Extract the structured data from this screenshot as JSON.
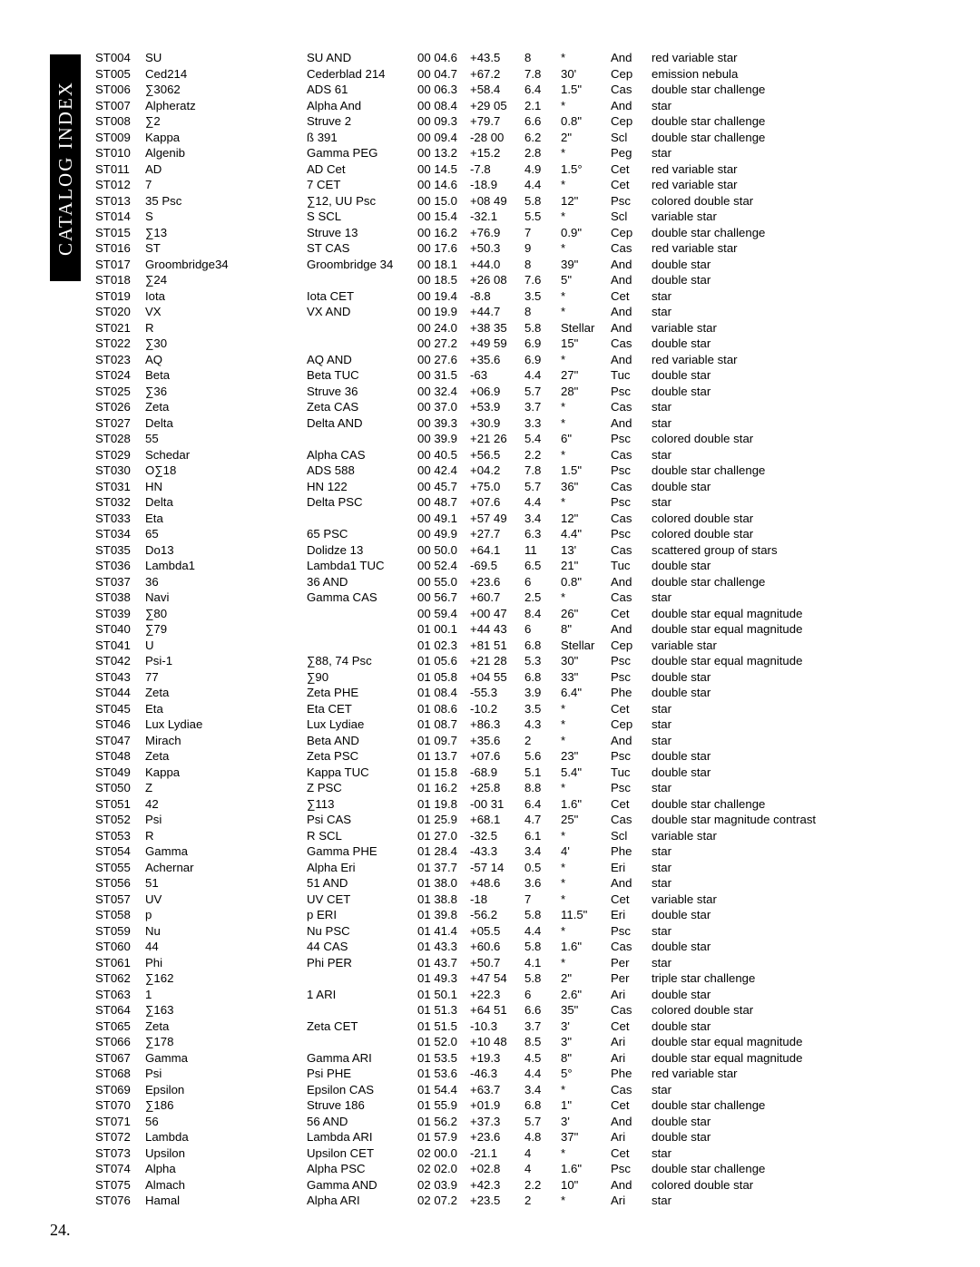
{
  "sideLabel": "CATALOG INDEX",
  "pageNumber": "24.",
  "rows": [
    {
      "id": "ST004",
      "name": "SU",
      "star": "SU AND",
      "ra": "00 04.6",
      "dec": "+43.5",
      "mag": "8",
      "sep": "*",
      "con": "And",
      "desc": "red variable star"
    },
    {
      "id": "ST005",
      "name": "Ced214",
      "star": "Cederblad 214",
      "ra": "00 04.7",
      "dec": "+67.2",
      "mag": "7.8",
      "sep": "30'",
      "con": "Cep",
      "desc": "emission nebula"
    },
    {
      "id": "ST006",
      "name": "∑3062",
      "star": "ADS 61",
      "ra": "00 06.3",
      "dec": "+58.4",
      "mag": "6.4",
      "sep": "1.5\"",
      "con": "Cas",
      "desc": "double star challenge"
    },
    {
      "id": "ST007",
      "name": "Alpheratz",
      "star": "Alpha And",
      "ra": "00 08.4",
      "dec": "+29 05",
      "mag": "2.1",
      "sep": "*",
      "con": "And",
      "desc": "star"
    },
    {
      "id": "ST008",
      "name": "∑2",
      "star": "Struve 2",
      "ra": "00 09.3",
      "dec": "+79.7",
      "mag": "6.6",
      "sep": "0.8\"",
      "con": "Cep",
      "desc": "double star challenge"
    },
    {
      "id": "ST009",
      "name": "Kappa",
      "star": "ß 391",
      "ra": "00 09.4",
      "dec": "-28 00",
      "mag": "6.2",
      "sep": "2\"",
      "con": "Scl",
      "desc": "double star challenge"
    },
    {
      "id": "ST010",
      "name": "Algenib",
      "star": "Gamma PEG",
      "ra": "00 13.2",
      "dec": "+15.2",
      "mag": "2.8",
      "sep": "*",
      "con": "Peg",
      "desc": "star"
    },
    {
      "id": "ST011",
      "name": "AD",
      "star": "AD Cet",
      "ra": "00 14.5",
      "dec": "-7.8",
      "mag": "4.9",
      "sep": "1.5°",
      "con": "Cet",
      "desc": "red variable star"
    },
    {
      "id": "ST012",
      "name": "7",
      "star": "7 CET",
      "ra": "00 14.6",
      "dec": "-18.9",
      "mag": "4.4",
      "sep": "*",
      "con": "Cet",
      "desc": "red variable star"
    },
    {
      "id": "ST013",
      "name": "35 Psc",
      "star": "∑12, UU Psc",
      "ra": "00 15.0",
      "dec": "+08 49",
      "mag": "5.8",
      "sep": "12\"",
      "con": "Psc",
      "desc": "colored double star"
    },
    {
      "id": "ST014",
      "name": "S",
      "star": "S SCL",
      "ra": "00 15.4",
      "dec": "-32.1",
      "mag": "5.5",
      "sep": "*",
      "con": "Scl",
      "desc": "variable star"
    },
    {
      "id": "ST015",
      "name": "∑13",
      "star": "Struve 13",
      "ra": "00 16.2",
      "dec": "+76.9",
      "mag": "7",
      "sep": "0.9\"",
      "con": "Cep",
      "desc": "double star challenge"
    },
    {
      "id": "ST016",
      "name": "ST",
      "star": "ST CAS",
      "ra": "00 17.6",
      "dec": "+50.3",
      "mag": "9",
      "sep": "*",
      "con": "Cas",
      "desc": "red variable star"
    },
    {
      "id": "ST017",
      "name": "Groombridge34",
      "star": "Groombridge 34",
      "ra": "00 18.1",
      "dec": "+44.0",
      "mag": "8",
      "sep": "39\"",
      "con": "And",
      "desc": "double star"
    },
    {
      "id": "ST018",
      "name": "∑24",
      "star": "",
      "ra": "00 18.5",
      "dec": "+26 08",
      "mag": "7.6",
      "sep": "5\"",
      "con": "And",
      "desc": "double star"
    },
    {
      "id": "ST019",
      "name": "Iota",
      "star": "Iota CET",
      "ra": "00 19.4",
      "dec": "-8.8",
      "mag": "3.5",
      "sep": "*",
      "con": "Cet",
      "desc": "star"
    },
    {
      "id": "ST020",
      "name": "VX",
      "star": "VX AND",
      "ra": "00 19.9",
      "dec": "+44.7",
      "mag": "8",
      "sep": "*",
      "con": "And",
      "desc": "star"
    },
    {
      "id": "ST021",
      "name": "R",
      "star": "",
      "ra": "00 24.0",
      "dec": "+38 35",
      "mag": "5.8",
      "sep": "Stellar",
      "con": "And",
      "desc": "variable star"
    },
    {
      "id": "ST022",
      "name": "∑30",
      "star": "",
      "ra": "00 27.2",
      "dec": "+49 59",
      "mag": "6.9",
      "sep": "15\"",
      "con": "Cas",
      "desc": "double star"
    },
    {
      "id": "ST023",
      "name": "AQ",
      "star": "AQ AND",
      "ra": "00 27.6",
      "dec": "+35.6",
      "mag": "6.9",
      "sep": "*",
      "con": "And",
      "desc": "red variable star"
    },
    {
      "id": "ST024",
      "name": "Beta",
      "star": "Beta TUC",
      "ra": "00 31.5",
      "dec": "-63",
      "mag": "4.4",
      "sep": "27\"",
      "con": "Tuc",
      "desc": "double star"
    },
    {
      "id": "ST025",
      "name": "∑36",
      "star": "Struve 36",
      "ra": "00 32.4",
      "dec": "+06.9",
      "mag": "5.7",
      "sep": "28\"",
      "con": "Psc",
      "desc": "double star"
    },
    {
      "id": "ST026",
      "name": "Zeta",
      "star": "Zeta CAS",
      "ra": "00 37.0",
      "dec": "+53.9",
      "mag": "3.7",
      "sep": "*",
      "con": "Cas",
      "desc": "star"
    },
    {
      "id": "ST027",
      "name": "Delta",
      "star": "Delta AND",
      "ra": "00 39.3",
      "dec": "+30.9",
      "mag": "3.3",
      "sep": "*",
      "con": "And",
      "desc": "star"
    },
    {
      "id": "ST028",
      "name": "55",
      "star": "",
      "ra": "00 39.9",
      "dec": "+21 26",
      "mag": "5.4",
      "sep": "6\"",
      "con": "Psc",
      "desc": "colored double star"
    },
    {
      "id": "ST029",
      "name": "Schedar",
      "star": "Alpha CAS",
      "ra": "00 40.5",
      "dec": "+56.5",
      "mag": "2.2",
      "sep": "*",
      "con": "Cas",
      "desc": "star"
    },
    {
      "id": "ST030",
      "name": "O∑18",
      "star": "ADS 588",
      "ra": "00 42.4",
      "dec": "+04.2",
      "mag": "7.8",
      "sep": "1.5\"",
      "con": "Psc",
      "desc": "double star challenge"
    },
    {
      "id": "ST031",
      "name": "HN",
      "star": "HN 122",
      "ra": "00 45.7",
      "dec": "+75.0",
      "mag": "5.7",
      "sep": "36\"",
      "con": "Cas",
      "desc": "double star"
    },
    {
      "id": "ST032",
      "name": "Delta",
      "star": "Delta PSC",
      "ra": "00 48.7",
      "dec": "+07.6",
      "mag": "4.4",
      "sep": "*",
      "con": "Psc",
      "desc": "star"
    },
    {
      "id": "ST033",
      "name": "Eta",
      "star": "",
      "ra": "00 49.1",
      "dec": "+57 49",
      "mag": "3.4",
      "sep": "12\"",
      "con": "Cas",
      "desc": "colored double star"
    },
    {
      "id": "ST034",
      "name": "65",
      "star": "65 PSC",
      "ra": "00 49.9",
      "dec": "+27.7",
      "mag": "6.3",
      "sep": "4.4\"",
      "con": "Psc",
      "desc": "colored double star"
    },
    {
      "id": "ST035",
      "name": "Do13",
      "star": "Dolidze 13",
      "ra": "00 50.0",
      "dec": "+64.1",
      "mag": "11",
      "sep": "13'",
      "con": "Cas",
      "desc": "scattered group of stars"
    },
    {
      "id": "ST036",
      "name": "Lambda1",
      "star": "Lambda1 TUC",
      "ra": "00 52.4",
      "dec": "-69.5",
      "mag": "6.5",
      "sep": "21\"",
      "con": "Tuc",
      "desc": "double star"
    },
    {
      "id": "ST037",
      "name": "36",
      "star": "36 AND",
      "ra": "00 55.0",
      "dec": "+23.6",
      "mag": "6",
      "sep": "0.8\"",
      "con": "And",
      "desc": "double star challenge"
    },
    {
      "id": "ST038",
      "name": "Navi",
      "star": "Gamma CAS",
      "ra": "00 56.7",
      "dec": "+60.7",
      "mag": "2.5",
      "sep": "*",
      "con": "Cas",
      "desc": "star"
    },
    {
      "id": "ST039",
      "name": "∑80",
      "star": "",
      "ra": "00 59.4",
      "dec": "+00 47",
      "mag": "8.4",
      "sep": "26\"",
      "con": "Cet",
      "desc": "double star equal magnitude"
    },
    {
      "id": "ST040",
      "name": "∑79",
      "star": "",
      "ra": "01 00.1",
      "dec": "+44 43",
      "mag": "6",
      "sep": "8\"",
      "con": "And",
      "desc": "double star equal magnitude"
    },
    {
      "id": "ST041",
      "name": "U",
      "star": "",
      "ra": "01 02.3",
      "dec": "+81 51",
      "mag": "6.8",
      "sep": "Stellar",
      "con": "Cep",
      "desc": "variable star"
    },
    {
      "id": "ST042",
      "name": "Psi-1",
      "star": "∑88, 74 Psc",
      "ra": "01 05.6",
      "dec": "+21 28",
      "mag": "5.3",
      "sep": "30\"",
      "con": "Psc",
      "desc": "double star equal magnitude"
    },
    {
      "id": "ST043",
      "name": "77",
      "star": "∑90",
      "ra": "01 05.8",
      "dec": "+04 55",
      "mag": "6.8",
      "sep": "33\"",
      "con": "Psc",
      "desc": "double star"
    },
    {
      "id": "ST044",
      "name": "Zeta",
      "star": "Zeta PHE",
      "ra": "01 08.4",
      "dec": "-55.3",
      "mag": "3.9",
      "sep": "6.4\"",
      "con": "Phe",
      "desc": "double star"
    },
    {
      "id": "ST045",
      "name": "Eta",
      "star": "Eta CET",
      "ra": "01 08.6",
      "dec": "-10.2",
      "mag": "3.5",
      "sep": "*",
      "con": "Cet",
      "desc": "star"
    },
    {
      "id": "ST046",
      "name": "Lux Lydiae",
      "star": "Lux Lydiae",
      "ra": "01 08.7",
      "dec": "+86.3",
      "mag": "4.3",
      "sep": "*",
      "con": "Cep",
      "desc": "star"
    },
    {
      "id": "ST047",
      "name": "Mirach",
      "star": "Beta AND",
      "ra": "01 09.7",
      "dec": "+35.6",
      "mag": "2",
      "sep": "*",
      "con": "And",
      "desc": "star"
    },
    {
      "id": "ST048",
      "name": "Zeta",
      "star": "Zeta PSC",
      "ra": "01 13.7",
      "dec": "+07.6",
      "mag": "5.6",
      "sep": "23\"",
      "con": "Psc",
      "desc": "double star"
    },
    {
      "id": "ST049",
      "name": "Kappa",
      "star": "Kappa TUC",
      "ra": "01 15.8",
      "dec": "-68.9",
      "mag": "5.1",
      "sep": "5.4\"",
      "con": "Tuc",
      "desc": "double star"
    },
    {
      "id": "ST050",
      "name": "Z",
      "star": "Z PSC",
      "ra": "01 16.2",
      "dec": "+25.8",
      "mag": "8.8",
      "sep": "*",
      "con": "Psc",
      "desc": "star"
    },
    {
      "id": "ST051",
      "name": "42",
      "star": "∑113",
      "ra": "01 19.8",
      "dec": "-00 31",
      "mag": "6.4",
      "sep": "1.6\"",
      "con": "Cet",
      "desc": "double star challenge"
    },
    {
      "id": "ST052",
      "name": "Psi",
      "star": "Psi CAS",
      "ra": "01 25.9",
      "dec": "+68.1",
      "mag": "4.7",
      "sep": "25\"",
      "con": "Cas",
      "desc": "double star magnitude contrast"
    },
    {
      "id": "ST053",
      "name": "R",
      "star": "R SCL",
      "ra": "01 27.0",
      "dec": "-32.5",
      "mag": "6.1",
      "sep": "*",
      "con": "Scl",
      "desc": "variable star"
    },
    {
      "id": "ST054",
      "name": "Gamma",
      "star": "Gamma PHE",
      "ra": "01 28.4",
      "dec": "-43.3",
      "mag": "3.4",
      "sep": "4'",
      "con": "Phe",
      "desc": "star"
    },
    {
      "id": "ST055",
      "name": "Achernar",
      "star": "Alpha Eri",
      "ra": "01 37.7",
      "dec": "-57 14",
      "mag": "0.5",
      "sep": "*",
      "con": "Eri",
      "desc": "star"
    },
    {
      "id": "ST056",
      "name": "51",
      "star": "51 AND",
      "ra": "01 38.0",
      "dec": "+48.6",
      "mag": "3.6",
      "sep": "*",
      "con": "And",
      "desc": "star"
    },
    {
      "id": "ST057",
      "name": "UV",
      "star": "UV CET",
      "ra": "01 38.8",
      "dec": "-18",
      "mag": "7",
      "sep": "*",
      "con": "Cet",
      "desc": "variable star"
    },
    {
      "id": "ST058",
      "name": "p",
      "star": "p ERI",
      "ra": "01 39.8",
      "dec": "-56.2",
      "mag": "5.8",
      "sep": "11.5\"",
      "con": "Eri",
      "desc": "double star"
    },
    {
      "id": "ST059",
      "name": "Nu",
      "star": "Nu PSC",
      "ra": "01 41.4",
      "dec": "+05.5",
      "mag": "4.4",
      "sep": "*",
      "con": "Psc",
      "desc": "star"
    },
    {
      "id": "ST060",
      "name": "44",
      "star": "44 CAS",
      "ra": "01 43.3",
      "dec": "+60.6",
      "mag": "5.8",
      "sep": "1.6\"",
      "con": "Cas",
      "desc": "double star"
    },
    {
      "id": "ST061",
      "name": "Phi",
      "star": "Phi PER",
      "ra": "01 43.7",
      "dec": "+50.7",
      "mag": "4.1",
      "sep": "*",
      "con": "Per",
      "desc": "star"
    },
    {
      "id": "ST062",
      "name": "∑162",
      "star": "",
      "ra": "01 49.3",
      "dec": "+47 54",
      "mag": "5.8",
      "sep": "2\"",
      "con": "Per",
      "desc": "triple star challenge"
    },
    {
      "id": "ST063",
      "name": "1",
      "star": "1 ARI",
      "ra": "01 50.1",
      "dec": "+22.3",
      "mag": "6",
      "sep": "2.6\"",
      "con": "Ari",
      "desc": "double star"
    },
    {
      "id": "ST064",
      "name": "∑163",
      "star": "",
      "ra": "01 51.3",
      "dec": "+64 51",
      "mag": "6.6",
      "sep": "35\"",
      "con": "Cas",
      "desc": "colored double star"
    },
    {
      "id": "ST065",
      "name": "Zeta",
      "star": "Zeta CET",
      "ra": "01 51.5",
      "dec": "-10.3",
      "mag": "3.7",
      "sep": "3'",
      "con": "Cet",
      "desc": "double star"
    },
    {
      "id": "ST066",
      "name": "∑178",
      "star": "",
      "ra": "01 52.0",
      "dec": "+10 48",
      "mag": "8.5",
      "sep": "3\"",
      "con": "Ari",
      "desc": "double star equal magnitude"
    },
    {
      "id": "ST067",
      "name": "Gamma",
      "star": "Gamma ARI",
      "ra": "01 53.5",
      "dec": "+19.3",
      "mag": "4.5",
      "sep": "8\"",
      "con": "Ari",
      "desc": "double star equal magnitude"
    },
    {
      "id": "ST068",
      "name": "Psi",
      "star": "Psi PHE",
      "ra": "01 53.6",
      "dec": "-46.3",
      "mag": "4.4",
      "sep": "5°",
      "con": "Phe",
      "desc": "red variable star"
    },
    {
      "id": "ST069",
      "name": "Epsilon",
      "star": "Epsilon CAS",
      "ra": "01 54.4",
      "dec": "+63.7",
      "mag": "3.4",
      "sep": "*",
      "con": "Cas",
      "desc": "star"
    },
    {
      "id": "ST070",
      "name": "∑186",
      "star": "Struve 186",
      "ra": "01 55.9",
      "dec": "+01.9",
      "mag": "6.8",
      "sep": "1\"",
      "con": "Cet",
      "desc": "double star challenge"
    },
    {
      "id": "ST071",
      "name": "56",
      "star": "56 AND",
      "ra": "01 56.2",
      "dec": "+37.3",
      "mag": "5.7",
      "sep": "3'",
      "con": "And",
      "desc": "double star"
    },
    {
      "id": "ST072",
      "name": "Lambda",
      "star": "Lambda ARI",
      "ra": "01 57.9",
      "dec": "+23.6",
      "mag": "4.8",
      "sep": "37\"",
      "con": "Ari",
      "desc": "double star"
    },
    {
      "id": "ST073",
      "name": "Upsilon",
      "star": "Upsilon CET",
      "ra": "02 00.0",
      "dec": "-21.1",
      "mag": "4",
      "sep": "*",
      "con": "Cet",
      "desc": "star"
    },
    {
      "id": "ST074",
      "name": "Alpha",
      "star": "Alpha PSC",
      "ra": "02 02.0",
      "dec": "+02.8",
      "mag": "4",
      "sep": "1.6\"",
      "con": "Psc",
      "desc": "double star challenge"
    },
    {
      "id": "ST075",
      "name": "Almach",
      "star": "Gamma AND",
      "ra": "02 03.9",
      "dec": "+42.3",
      "mag": "2.2",
      "sep": "10\"",
      "con": "And",
      "desc": "colored double star"
    },
    {
      "id": "ST076",
      "name": "Hamal",
      "star": "Alpha ARI",
      "ra": "02 07.2",
      "dec": "+23.5",
      "mag": "2",
      "sep": "*",
      "con": "Ari",
      "desc": "star"
    }
  ]
}
